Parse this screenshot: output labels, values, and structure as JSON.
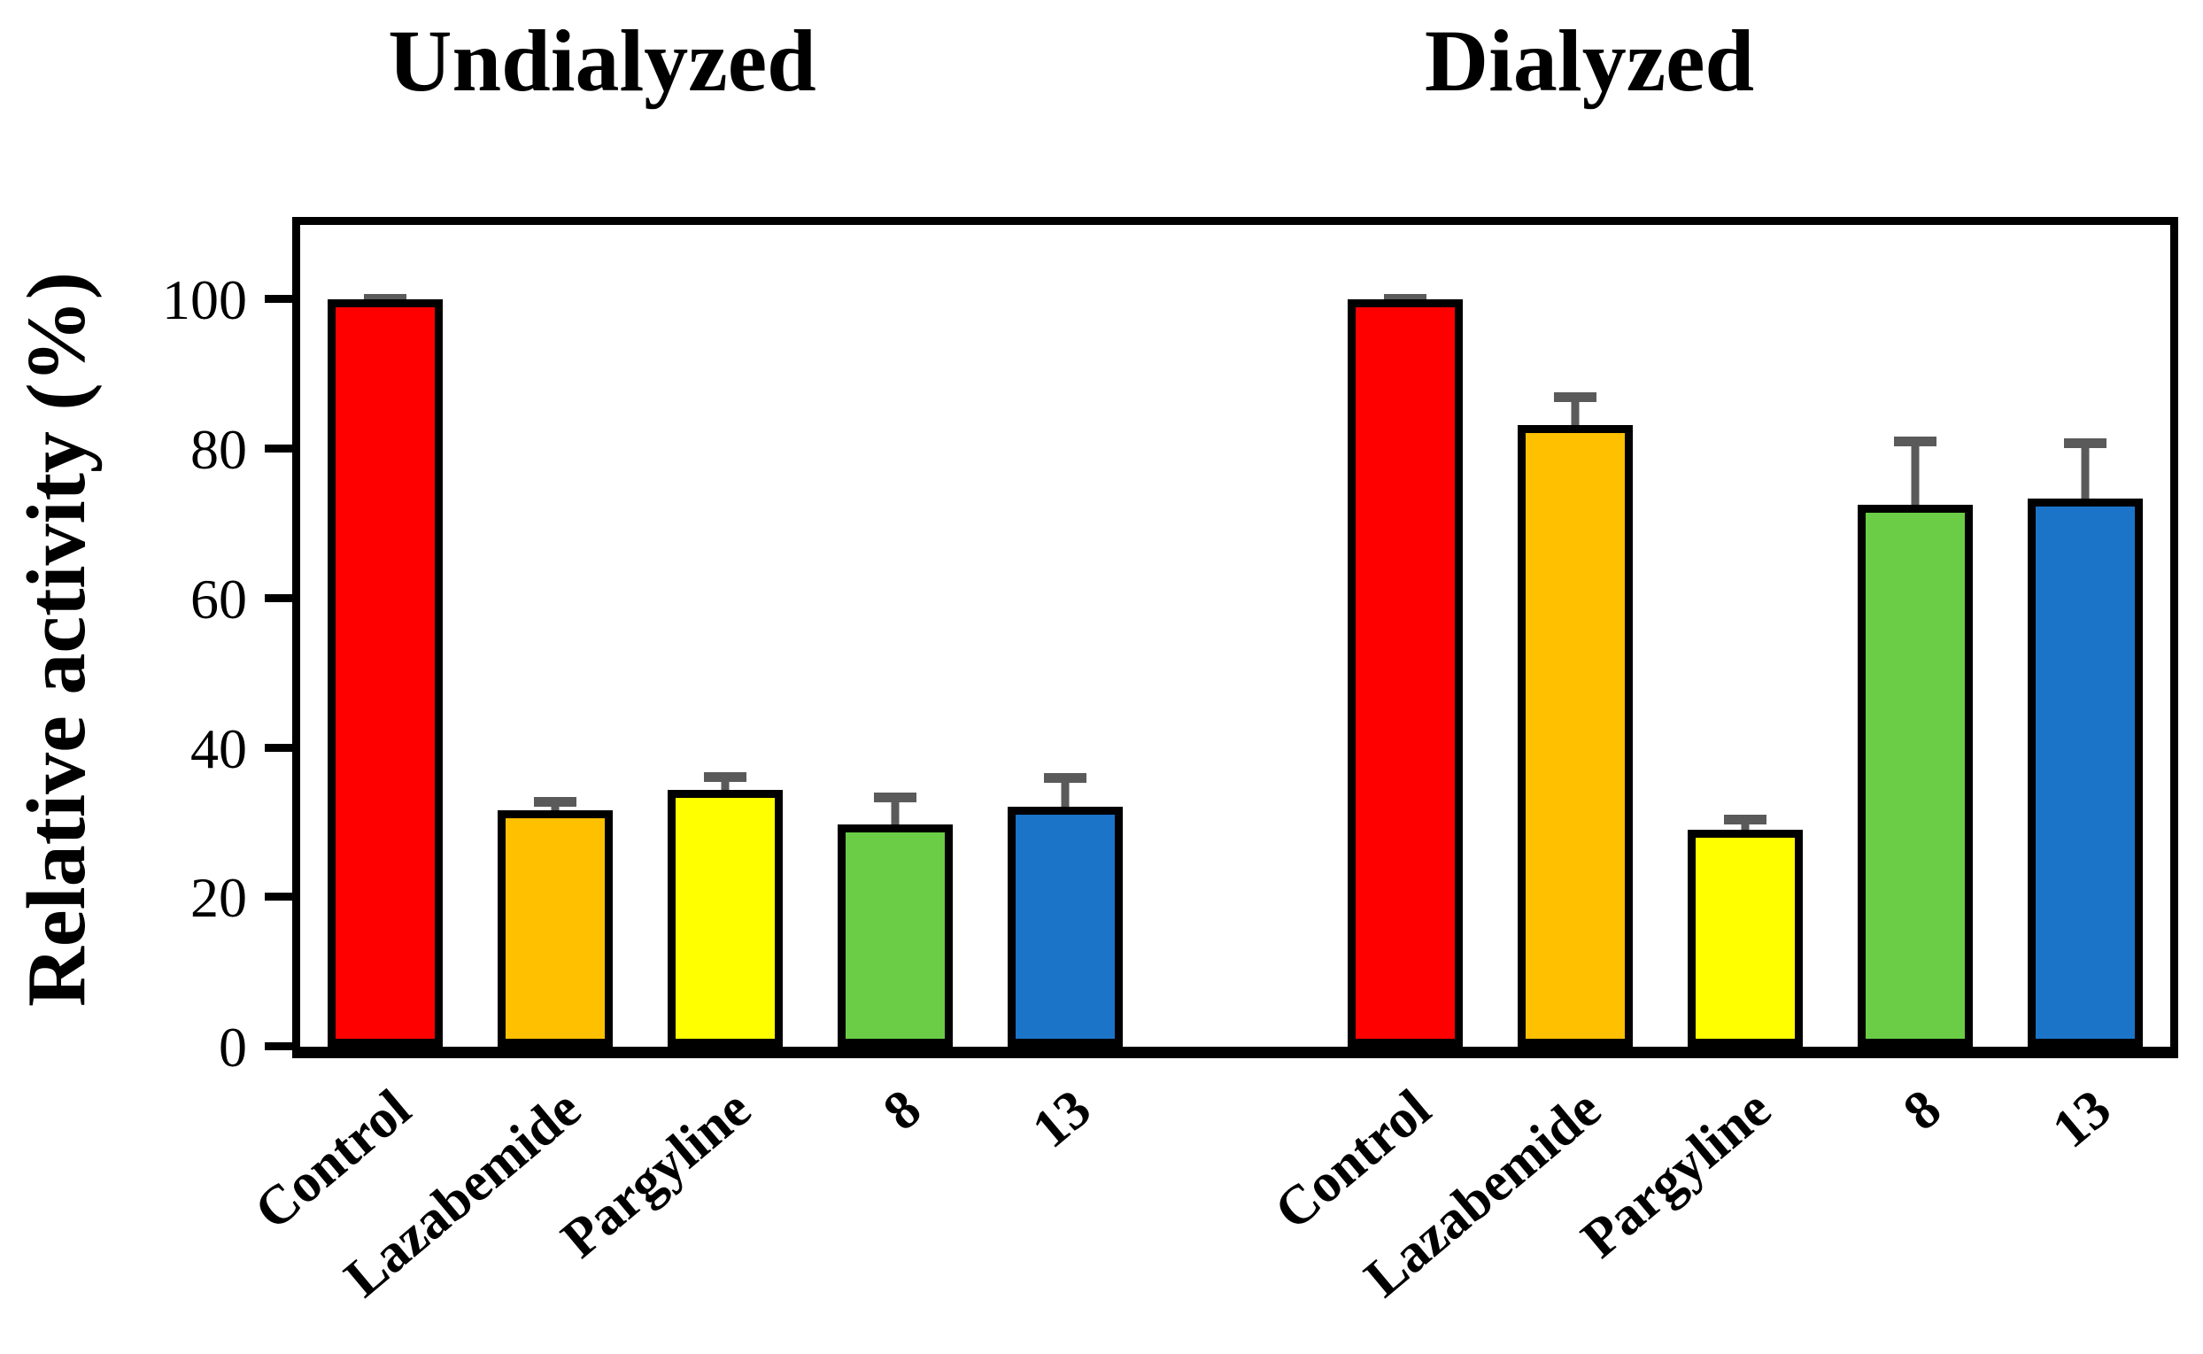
{
  "page": {
    "background_color": "#ffffff",
    "text_color": "#000000"
  },
  "chart_data": {
    "type": "bar",
    "panel_titles": [
      "Undialyzed",
      "Dialyzed"
    ],
    "ylabel": "Relative activity (%)",
    "ylim": [
      0,
      110
    ],
    "yticks": [
      0,
      20,
      40,
      60,
      80,
      100
    ],
    "grid": false,
    "legend": "none",
    "categories": [
      "Control",
      "Lazabemide",
      "Pargyline",
      "8",
      "13"
    ],
    "category_colors": [
      "#ff0000",
      "#ffc000",
      "#ffff00",
      "#6acd45",
      "#1b74c8"
    ],
    "bar_border_color": "#000000",
    "error_bar_color": "#5a5a5a",
    "series": [
      {
        "name": "Undialyzed",
        "values": [
          100,
          31.6,
          34.4,
          29.8,
          32.1
        ],
        "errors": [
          0.8,
          1.8,
          2.3,
          4.2,
          4.5
        ]
      },
      {
        "name": "Dialyzed",
        "values": [
          100,
          83.2,
          29.1,
          72.5,
          73.4
        ],
        "errors": [
          0.8,
          4.4,
          2.0,
          9.2,
          8.0
        ]
      }
    ]
  }
}
